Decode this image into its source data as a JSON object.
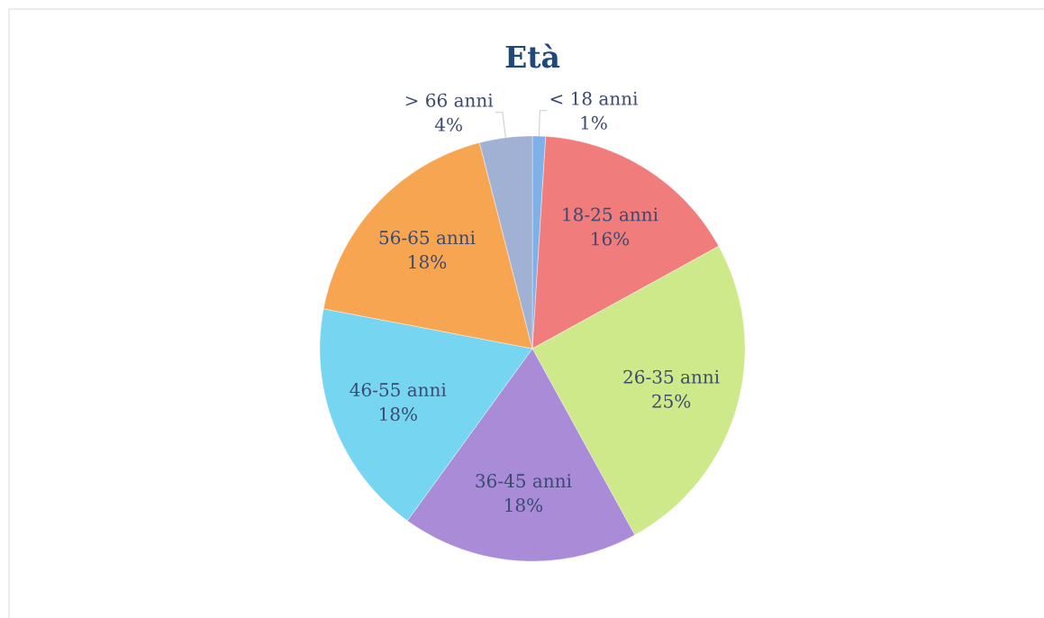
{
  "chart_data": {
    "type": "pie",
    "title": "Età",
    "categories": [
      "< 18 anni",
      "18-25 anni",
      "26-35 anni",
      "36-45 anni",
      "46-55 anni",
      "56-65 anni",
      "> 66 anni"
    ],
    "values": [
      1,
      16,
      25,
      18,
      18,
      18,
      4
    ],
    "value_labels": [
      "1%",
      "16%",
      "25%",
      "18%",
      "18%",
      "18%",
      "4%"
    ],
    "colors": [
      "#7fb0e8",
      "#f07c7c",
      "#cde98a",
      "#a98bd8",
      "#76d5f0",
      "#f8a552",
      "#a0b1d3"
    ]
  }
}
